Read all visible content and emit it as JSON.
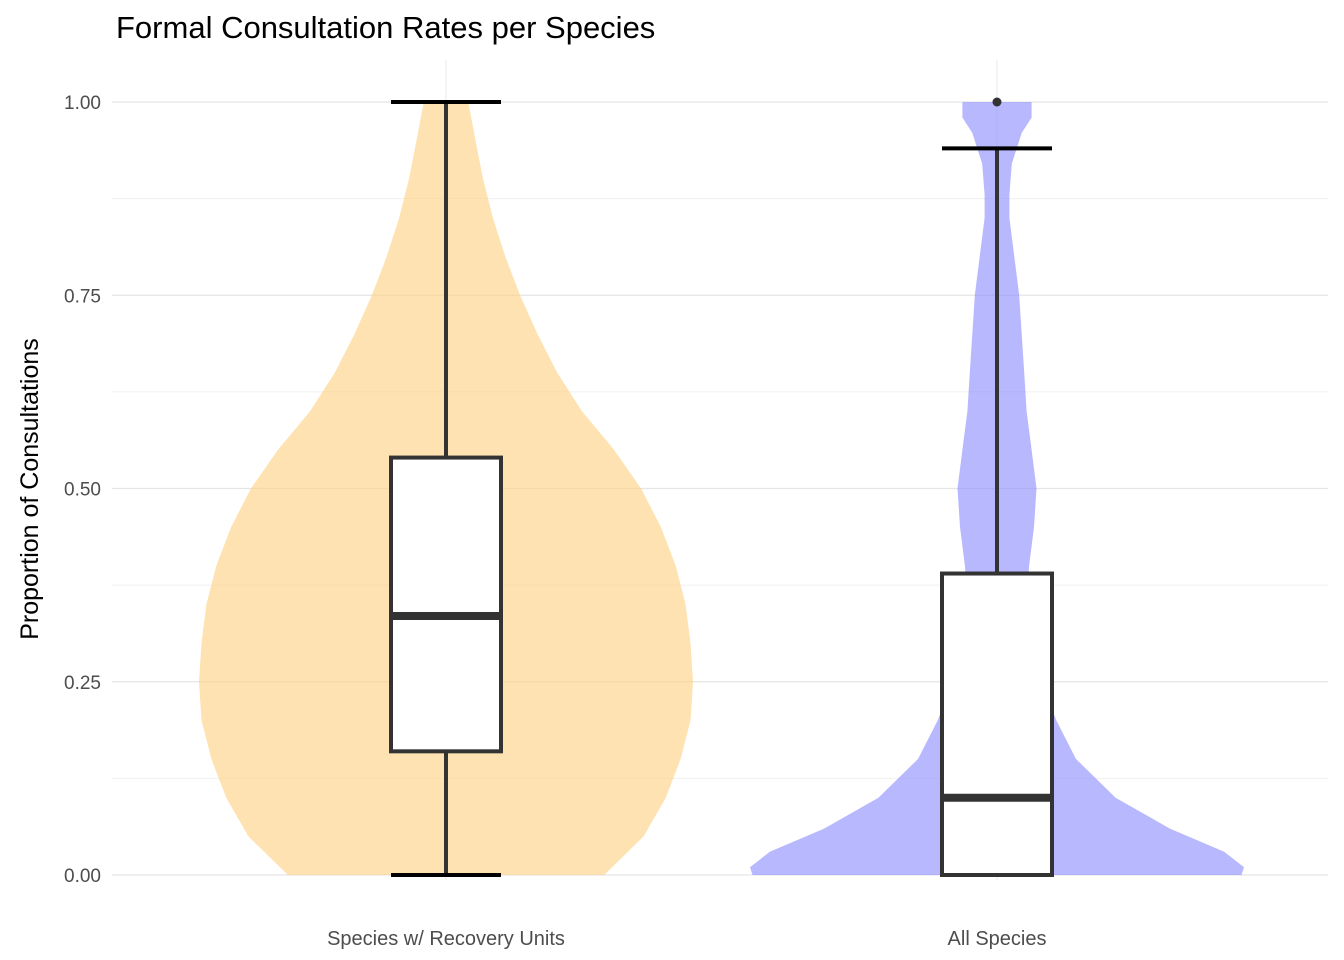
{
  "chart_data": {
    "type": "violin",
    "title": "Formal Consultation Rates per Species",
    "xlabel": "",
    "ylabel": "Proportion of Consultations",
    "ylim": [
      0,
      1
    ],
    "yticks": [
      "0.00",
      "0.25",
      "0.50",
      "0.75",
      "1.00"
    ],
    "grid": true,
    "legend": "none",
    "categories": [
      "Species w/ Recovery Units",
      "All Species"
    ],
    "series": [
      {
        "category": "Species w/ Recovery Units",
        "color": "#FDD081",
        "box": {
          "min": 0.0,
          "q1": 0.16,
          "median": 0.335,
          "q3": 0.54,
          "max": 1.0
        },
        "outliers": [],
        "density_profile": [
          [
            0.0,
            0.64
          ],
          [
            0.05,
            0.8
          ],
          [
            0.1,
            0.89
          ],
          [
            0.15,
            0.95
          ],
          [
            0.2,
            0.99
          ],
          [
            0.25,
            1.0
          ],
          [
            0.3,
            0.99
          ],
          [
            0.35,
            0.97
          ],
          [
            0.4,
            0.93
          ],
          [
            0.45,
            0.87
          ],
          [
            0.5,
            0.79
          ],
          [
            0.55,
            0.68
          ],
          [
            0.6,
            0.55
          ],
          [
            0.65,
            0.45
          ],
          [
            0.7,
            0.37
          ],
          [
            0.75,
            0.3
          ],
          [
            0.8,
            0.24
          ],
          [
            0.85,
            0.19
          ],
          [
            0.9,
            0.15
          ],
          [
            0.95,
            0.12
          ],
          [
            1.0,
            0.09
          ]
        ]
      },
      {
        "category": "All Species",
        "color": "#8C8CFF",
        "box": {
          "min": 0.0,
          "q1": 0.0,
          "median": 0.1,
          "q3": 0.39,
          "max": 0.94
        },
        "outliers": [
          1.0
        ],
        "density_profile": [
          [
            0.0,
            0.99
          ],
          [
            0.01,
            1.0
          ],
          [
            0.03,
            0.92
          ],
          [
            0.06,
            0.7
          ],
          [
            0.1,
            0.48
          ],
          [
            0.15,
            0.32
          ],
          [
            0.2,
            0.24
          ],
          [
            0.25,
            0.18
          ],
          [
            0.3,
            0.14
          ],
          [
            0.35,
            0.12
          ],
          [
            0.4,
            0.13
          ],
          [
            0.45,
            0.15
          ],
          [
            0.5,
            0.16
          ],
          [
            0.55,
            0.14
          ],
          [
            0.6,
            0.12
          ],
          [
            0.65,
            0.11
          ],
          [
            0.7,
            0.1
          ],
          [
            0.75,
            0.09
          ],
          [
            0.8,
            0.07
          ],
          [
            0.85,
            0.05
          ],
          [
            0.88,
            0.05
          ],
          [
            0.92,
            0.06
          ],
          [
            0.96,
            0.1
          ],
          [
            0.98,
            0.14
          ],
          [
            1.0,
            0.14
          ]
        ]
      }
    ]
  }
}
